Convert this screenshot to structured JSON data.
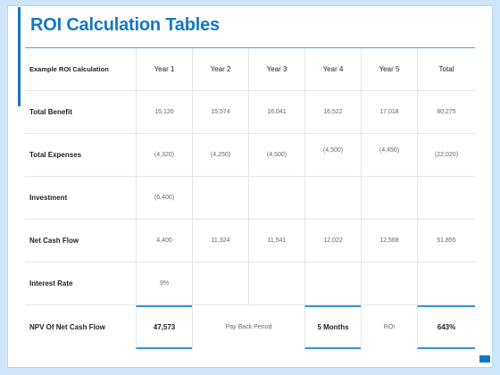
{
  "title": "ROI Calculation Tables",
  "header": [
    "Example ROI Calculation",
    "Year 1",
    "Year 2",
    "Year 3",
    "Year 4",
    "Year 5",
    "Total"
  ],
  "rows": [
    {
      "label": "Total Benefit",
      "cells": [
        "15,120",
        "15,574",
        "16,041",
        "16,522",
        "17,018",
        "80,275"
      ]
    },
    {
      "label": "Total Expenses",
      "cells": [
        "(4,320)",
        "(4,250)",
        "(4,500)",
        "(4,500)",
        "(4,450)",
        "(22,020)"
      ]
    },
    {
      "label": "Investment",
      "cells": [
        "(6,400)",
        "",
        "",
        "",
        "",
        ""
      ]
    },
    {
      "label": "Net Cash Flow",
      "cells": [
        "4,400",
        "11,324",
        "11,541",
        "12,022",
        "12,568",
        "51,855"
      ]
    },
    {
      "label": "Interest Rate",
      "cells": [
        "9%",
        "",
        "",
        "",
        "",
        ""
      ]
    }
  ],
  "npv": {
    "label": "NPV Of Net Cash Flow",
    "value": "47,573",
    "payback_label": "Pay Back Period",
    "payback_value": "5 Months",
    "roi_label": "ROI",
    "roi_value": "643%"
  },
  "colors": {
    "accent": "#1577c4",
    "background": "#cfe6f8"
  }
}
